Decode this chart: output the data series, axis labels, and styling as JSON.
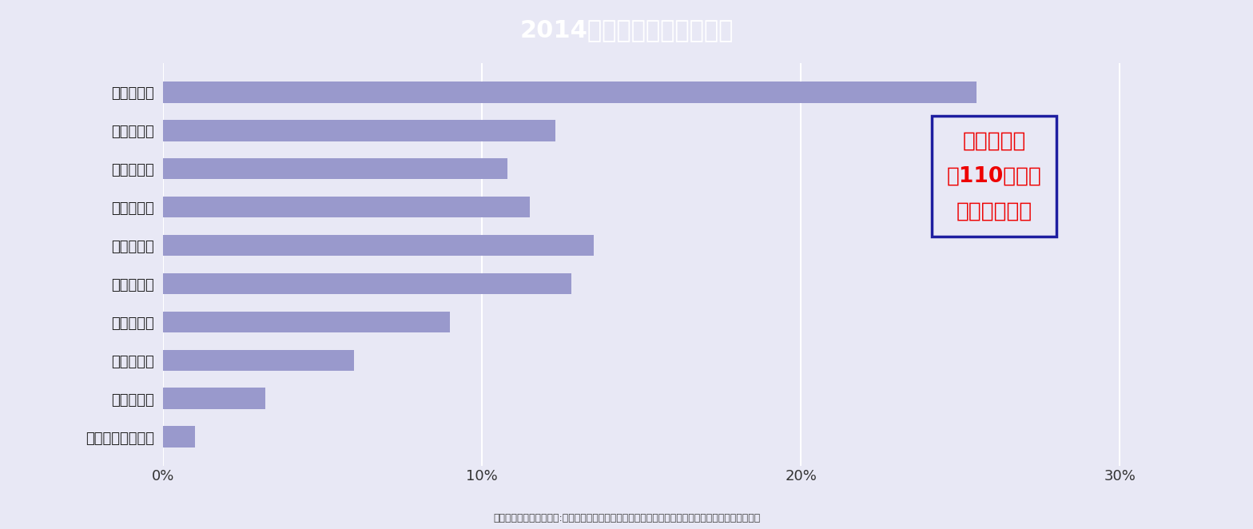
{
  "title": "2014年度の就業者年齢構成",
  "categories": [
    "６０歳以上",
    "５５～５９",
    "５０～５４",
    "４５～４９",
    "４０～４４",
    "３５～３９",
    "３０～３４",
    "２５～２９",
    "２０～２４",
    "１５～１９（歳）"
  ],
  "values": [
    25.5,
    12.3,
    10.8,
    11.5,
    13.5,
    12.8,
    9.0,
    6.0,
    3.2,
    1.0
  ],
  "bar_color": "#9999CC",
  "background_color": "#E8E8F5",
  "plot_bg_color": "#EEEEF8",
  "title_bg_color": "#1E1EA0",
  "title_text_color": "#ffffff",
  "xlabel_color": "#333333",
  "xlim": [
    0,
    33
  ],
  "xticks": [
    0,
    10,
    20,
    30
  ],
  "xtick_labels": [
    "0%",
    "10%",
    "20%",
    "30%"
  ],
  "annotation_line1": "技能労働者",
  "annotation_line2": "約110万人が",
  "annotation_line3": "離職の可能性",
  "annotation_color": "#ee0000",
  "annotation_box_edge_color": "#1E1EA0",
  "source_text": "出典：国土交通省資料１:建設現場の生産性に関する現状「日本建設連合会「再生と進化に向けて」",
  "source_color": "#444444"
}
